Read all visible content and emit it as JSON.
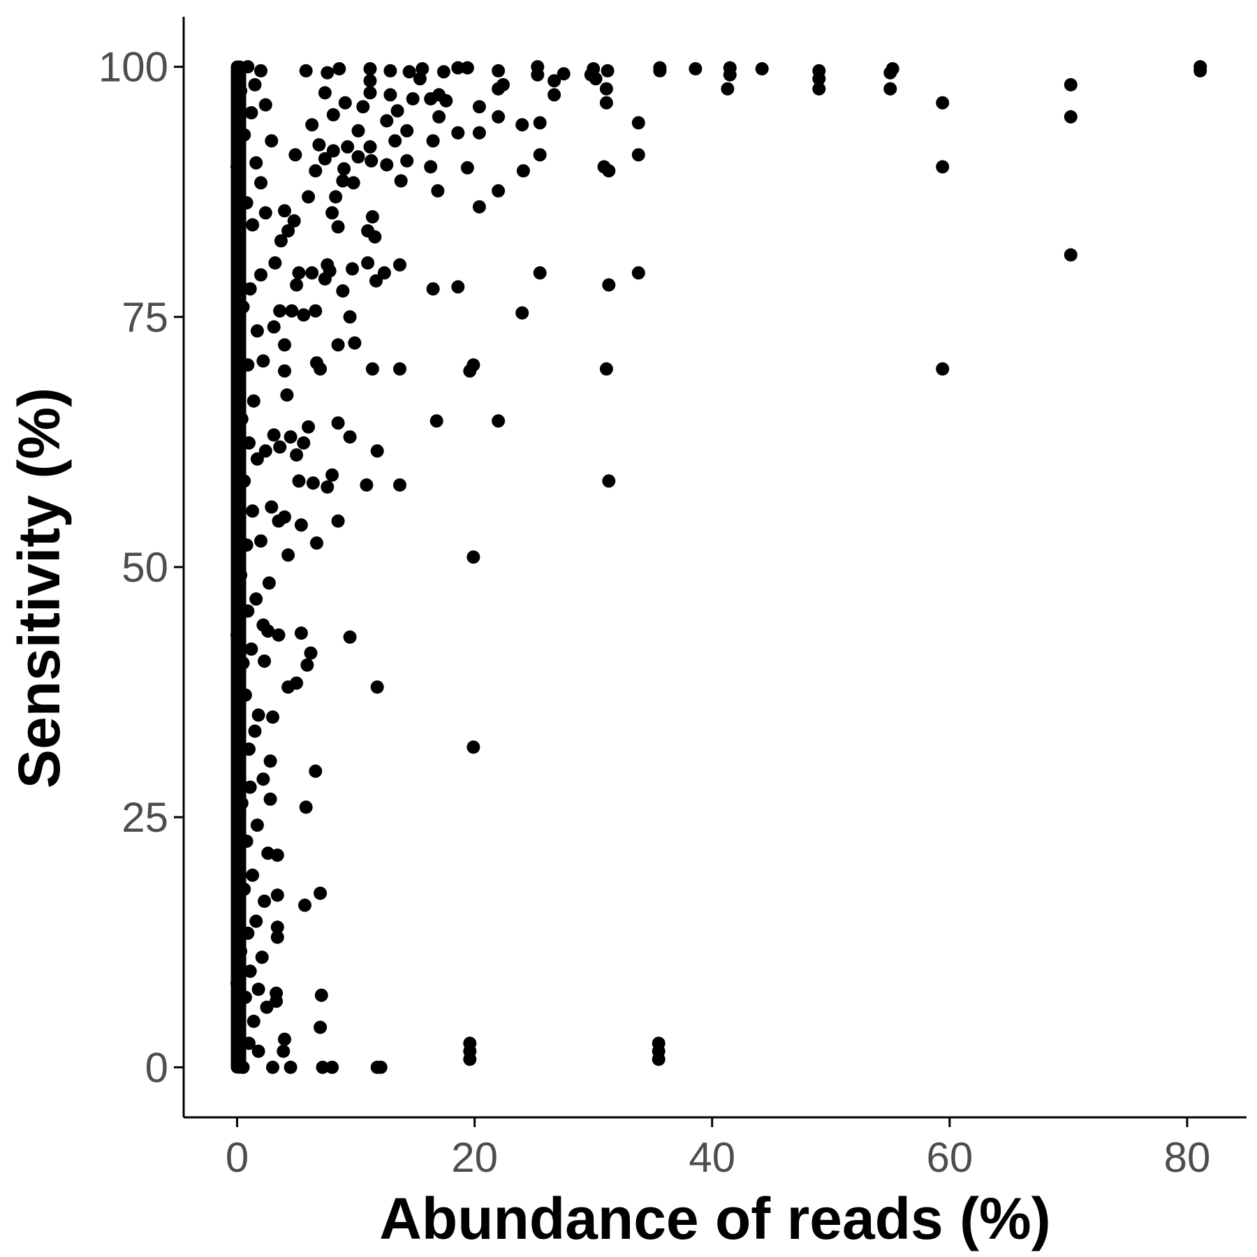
{
  "chart_data": {
    "type": "scatter",
    "title": "",
    "xlabel": "Abundance of reads (%)",
    "ylabel": "Sensitivity (%)",
    "xlim": [
      -4.5,
      85
    ],
    "ylim": [
      -5,
      105
    ],
    "x_ticks": [
      0,
      20,
      40,
      60,
      80
    ],
    "x_tick_labels": [
      "0",
      "20",
      "40",
      "60",
      "80"
    ],
    "y_ticks": [
      0,
      25,
      50,
      75,
      100
    ],
    "y_tick_labels": [
      "0",
      "25",
      "50",
      "75",
      "100"
    ],
    "grid": false,
    "legend": "none",
    "point_color": "#000000",
    "series": [
      {
        "points": [
          [
            81.1,
            100
          ],
          [
            81.1,
            99.6
          ],
          [
            70.2,
            98.2
          ],
          [
            70.2,
            95
          ],
          [
            70.2,
            81.2
          ],
          [
            59.4,
            96.4
          ],
          [
            59.4,
            90
          ],
          [
            59.4,
            69.8
          ],
          [
            55.2,
            99.8
          ],
          [
            55.0,
            99.4
          ],
          [
            55.0,
            97.8
          ],
          [
            49.0,
            99.6
          ],
          [
            49.0,
            98.8
          ],
          [
            49.0,
            97.8
          ],
          [
            44.2,
            99.8
          ],
          [
            41.5,
            99.9
          ],
          [
            41.5,
            99.2
          ],
          [
            41.3,
            97.8
          ],
          [
            38.6,
            99.8
          ],
          [
            35.6,
            99.9
          ],
          [
            35.6,
            99.6
          ],
          [
            33.8,
            94.4
          ],
          [
            33.8,
            91.2
          ],
          [
            33.8,
            79.4
          ],
          [
            35.5,
            2.4
          ],
          [
            35.5,
            1.6
          ],
          [
            35.5,
            0.8
          ],
          [
            31.2,
            99.6
          ],
          [
            31.1,
            97.8
          ],
          [
            31.1,
            96.4
          ],
          [
            30.9,
            90
          ],
          [
            31.3,
            89.6
          ],
          [
            31.3,
            78.2
          ],
          [
            31.1,
            69.8
          ],
          [
            31.3,
            58.6
          ],
          [
            30.0,
            99.8
          ],
          [
            30.2,
            98.8
          ],
          [
            29.8,
            99.2
          ],
          [
            27.5,
            99.3
          ],
          [
            26.7,
            98.6
          ],
          [
            26.7,
            97.2
          ],
          [
            25.3,
            100
          ],
          [
            25.3,
            99.2
          ],
          [
            25.5,
            94.4
          ],
          [
            25.5,
            91.2
          ],
          [
            25.5,
            79.4
          ],
          [
            24.0,
            94.2
          ],
          [
            24.1,
            89.6
          ],
          [
            24.0,
            75.4
          ],
          [
            22.0,
            99.6
          ],
          [
            22.4,
            98.2
          ],
          [
            22.0,
            97.8
          ],
          [
            22.0,
            95
          ],
          [
            22.0,
            87.6
          ],
          [
            22.0,
            64.6
          ],
          [
            20.4,
            96
          ],
          [
            20.4,
            93.4
          ],
          [
            20.4,
            86
          ],
          [
            19.9,
            70.2
          ],
          [
            19.6,
            69.6
          ],
          [
            19.9,
            51
          ],
          [
            19.9,
            32
          ],
          [
            19.6,
            2.4
          ],
          [
            19.6,
            1.6
          ],
          [
            19.6,
            0.8
          ],
          [
            19.4,
            99.9
          ],
          [
            19.4,
            89.9
          ],
          [
            18.6,
            99.9
          ],
          [
            18.6,
            93.4
          ],
          [
            18.6,
            78
          ],
          [
            17.6,
            96.6
          ],
          [
            17.4,
            99.5
          ],
          [
            17.0,
            97.2
          ],
          [
            17.0,
            95
          ],
          [
            16.9,
            87.6
          ],
          [
            16.8,
            64.6
          ],
          [
            16.5,
            92.6
          ],
          [
            16.5,
            77.8
          ],
          [
            16.3,
            90
          ],
          [
            16.3,
            96.8
          ],
          [
            15.6,
            99.8
          ],
          [
            15.4,
            98.8
          ],
          [
            14.8,
            96.8
          ],
          [
            14.5,
            99.5
          ],
          [
            14.3,
            93.6
          ],
          [
            14.3,
            90.6
          ],
          [
            13.8,
            88.6
          ],
          [
            13.7,
            80.2
          ],
          [
            13.7,
            69.8
          ],
          [
            13.7,
            58.2
          ],
          [
            13.5,
            95.6
          ],
          [
            13.3,
            92.6
          ],
          [
            12.9,
            99.6
          ],
          [
            12.9,
            97.2
          ],
          [
            12.6,
            94.6
          ],
          [
            12.6,
            90.2
          ],
          [
            12.4,
            79.4
          ],
          [
            12.1,
            0
          ],
          [
            11.8,
            0
          ],
          [
            11.8,
            61.6
          ],
          [
            11.8,
            38
          ],
          [
            11.7,
            78.6
          ],
          [
            11.6,
            83
          ],
          [
            11.4,
            85
          ],
          [
            11.4,
            69.8
          ],
          [
            11.3,
            90.6
          ],
          [
            11.2,
            92
          ],
          [
            11.2,
            99.8
          ],
          [
            11.2,
            98.6
          ],
          [
            11.2,
            97.4
          ],
          [
            11.0,
            83.6
          ],
          [
            11.0,
            80.4
          ],
          [
            10.9,
            58.2
          ],
          [
            10.6,
            96
          ],
          [
            10.2,
            91
          ],
          [
            10.2,
            93.6
          ],
          [
            9.9,
            72.4
          ],
          [
            9.8,
            88.4
          ],
          [
            9.7,
            79.8
          ],
          [
            9.5,
            75
          ],
          [
            9.5,
            63
          ],
          [
            9.5,
            43
          ],
          [
            9.3,
            92
          ],
          [
            9.1,
            96.4
          ],
          [
            9.0,
            89.8
          ],
          [
            8.9,
            88.6
          ],
          [
            8.9,
            77.6
          ],
          [
            8.6,
            99.8
          ],
          [
            8.5,
            84
          ],
          [
            8.5,
            72.2
          ],
          [
            8.5,
            64.4
          ],
          [
            8.5,
            54.6
          ],
          [
            8.3,
            87
          ],
          [
            8.1,
            95.2
          ],
          [
            8.1,
            91.6
          ],
          [
            8.0,
            85.4
          ],
          [
            8.0,
            59.2
          ],
          [
            8.0,
            0
          ],
          [
            7.8,
            79.6
          ],
          [
            7.6,
            99.4
          ],
          [
            7.6,
            80.2
          ],
          [
            7.6,
            58
          ],
          [
            7.4,
            97.4
          ],
          [
            7.4,
            90.8
          ],
          [
            7.4,
            78.8
          ],
          [
            7.2,
            0
          ],
          [
            7.1,
            7.2
          ],
          [
            7.0,
            17.4
          ],
          [
            7.0,
            4
          ],
          [
            7.0,
            69.8
          ],
          [
            6.9,
            92.2
          ],
          [
            6.7,
            70.4
          ],
          [
            6.7,
            52.4
          ],
          [
            6.6,
            89.6
          ],
          [
            6.6,
            75.6
          ],
          [
            6.6,
            29.6
          ],
          [
            6.4,
            58.4
          ],
          [
            6.3,
            94.2
          ],
          [
            6.3,
            79.4
          ],
          [
            6.2,
            41.4
          ],
          [
            6.0,
            87
          ],
          [
            6.0,
            64
          ],
          [
            5.9,
            40.2
          ],
          [
            5.8,
            99.6
          ],
          [
            5.8,
            26
          ],
          [
            5.7,
            16.2
          ],
          [
            5.6,
            75.2
          ],
          [
            5.6,
            62.4
          ],
          [
            5.4,
            43.4
          ],
          [
            5.4,
            54.2
          ],
          [
            5.2,
            79.4
          ],
          [
            5.2,
            58.6
          ],
          [
            5.0,
            78.2
          ],
          [
            5.0,
            61.2
          ],
          [
            5.0,
            38.4
          ],
          [
            4.9,
            91.2
          ],
          [
            4.8,
            84.6
          ],
          [
            4.6,
            75.6
          ],
          [
            4.5,
            63
          ],
          [
            4.5,
            0
          ],
          [
            4.3,
            83.6
          ],
          [
            4.3,
            51.2
          ],
          [
            4.3,
            38
          ],
          [
            4.2,
            67.2
          ],
          [
            4.0,
            85.6
          ],
          [
            4.0,
            72.2
          ],
          [
            4.0,
            69.6
          ],
          [
            4.0,
            55
          ],
          [
            4.0,
            2.8
          ],
          [
            3.9,
            1.6
          ],
          [
            3.7,
            82.6
          ],
          [
            3.6,
            75.6
          ],
          [
            3.6,
            62
          ],
          [
            3.5,
            54.6
          ],
          [
            3.5,
            43.2
          ],
          [
            3.4,
            21.2
          ],
          [
            3.4,
            17.2
          ],
          [
            3.4,
            14
          ],
          [
            3.4,
            13
          ],
          [
            3.3,
            7.4
          ],
          [
            3.3,
            6.6
          ],
          [
            3.2,
            80.4
          ],
          [
            3.1,
            74
          ],
          [
            3.1,
            63.2
          ],
          [
            3.0,
            35
          ],
          [
            3.0,
            0
          ],
          [
            2.9,
            92.6
          ],
          [
            2.9,
            56
          ],
          [
            2.8,
            30.6
          ],
          [
            2.8,
            26.8
          ],
          [
            2.7,
            48.4
          ],
          [
            2.6,
            43.6
          ],
          [
            2.6,
            21.4
          ],
          [
            2.5,
            6
          ],
          [
            2.4,
            96.2
          ],
          [
            2.4,
            85.4
          ],
          [
            2.4,
            61.6
          ],
          [
            2.3,
            40.6
          ],
          [
            2.3,
            16.6
          ],
          [
            2.2,
            70.6
          ],
          [
            2.2,
            44.2
          ],
          [
            2.2,
            28.8
          ],
          [
            2.1,
            11
          ],
          [
            2.0,
            99.6
          ],
          [
            2.0,
            88.4
          ],
          [
            2.0,
            79.2
          ],
          [
            2.0,
            52.6
          ],
          [
            1.8,
            35.2
          ],
          [
            1.8,
            7.8
          ],
          [
            1.8,
            1.6
          ],
          [
            1.7,
            73.6
          ],
          [
            1.7,
            60.8
          ],
          [
            1.7,
            24.2
          ],
          [
            1.6,
            90.4
          ],
          [
            1.6,
            46.8
          ],
          [
            1.6,
            14.6
          ],
          [
            1.5,
            98.2
          ],
          [
            1.5,
            33.6
          ],
          [
            1.4,
            66.6
          ],
          [
            1.4,
            4.6
          ],
          [
            1.3,
            84.2
          ],
          [
            1.3,
            55.6
          ],
          [
            1.3,
            19.2
          ],
          [
            1.2,
            95.4
          ],
          [
            1.2,
            41.8
          ],
          [
            1.1,
            77.8
          ],
          [
            1.1,
            28
          ],
          [
            1.1,
            9.6
          ],
          [
            1.0,
            62.4
          ],
          [
            1.0,
            31.8
          ],
          [
            1.0,
            2.4
          ],
          [
            0.9,
            100
          ],
          [
            0.9,
            70.2
          ],
          [
            0.9,
            45.6
          ],
          [
            0.9,
            13.4
          ],
          [
            0.8,
            86.4
          ],
          [
            0.8,
            52.2
          ],
          [
            0.8,
            22.6
          ],
          [
            0.7,
            37.2
          ],
          [
            0.7,
            7
          ],
          [
            0.6,
            93.2
          ],
          [
            0.6,
            58.6
          ],
          [
            0.6,
            17.8
          ],
          [
            0.5,
            76
          ],
          [
            0.5,
            40.4
          ],
          [
            0.5,
            0
          ],
          [
            0.4,
            64.8
          ],
          [
            0.4,
            26.4
          ],
          [
            0.3,
            97.6
          ],
          [
            0.3,
            49.2
          ],
          [
            0.3,
            11.6
          ],
          [
            0.2,
            81.6
          ],
          [
            0.2,
            33
          ],
          [
            0.2,
            3.6
          ],
          [
            0.1,
            56.4
          ],
          [
            0.1,
            20.8
          ],
          [
            0.0,
            90
          ],
          [
            0.0,
            43.2
          ],
          [
            0.0,
            8.4
          ]
        ]
      }
    ]
  }
}
